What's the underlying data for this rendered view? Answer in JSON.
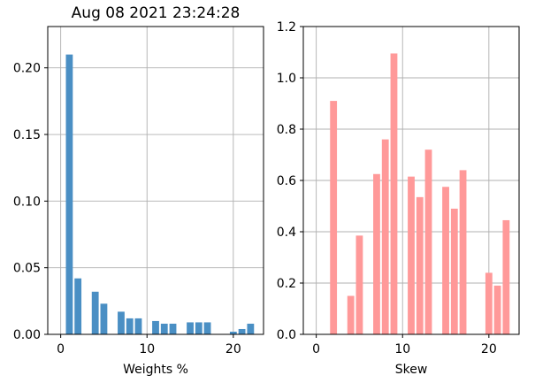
{
  "chart_data": [
    {
      "type": "bar",
      "title": "Aug 08 2021 23:24:28",
      "xlabel": "Weights %",
      "ylabel": "",
      "x": [
        1,
        2,
        4,
        5,
        7,
        8,
        9,
        11,
        12,
        13,
        15,
        16,
        17,
        20,
        21,
        22
      ],
      "values": [
        0.21,
        0.042,
        0.032,
        0.023,
        0.017,
        0.012,
        0.012,
        0.01,
        0.008,
        0.008,
        0.009,
        0.009,
        0.009,
        0.002,
        0.004,
        0.008
      ],
      "xlim": [
        -1.5,
        23.5
      ],
      "ylim": [
        0,
        0.231
      ],
      "xticks": [
        0,
        10,
        20
      ],
      "yticks": [
        0.0,
        0.05,
        0.1,
        0.15,
        0.2
      ],
      "ytick_labels": [
        "0.00",
        "0.05",
        "0.10",
        "0.15",
        "0.20"
      ],
      "grid": true,
      "color": "#4a8fc4"
    },
    {
      "type": "bar",
      "title": "",
      "xlabel": "Skew",
      "ylabel": "",
      "x": [
        2,
        4,
        5,
        7,
        8,
        9,
        11,
        12,
        13,
        15,
        16,
        17,
        20,
        21,
        22
      ],
      "values": [
        0.91,
        0.15,
        0.385,
        0.625,
        0.76,
        1.095,
        0.615,
        0.535,
        0.72,
        0.575,
        0.49,
        0.64,
        0.24,
        0.19,
        0.445
      ],
      "xlim": [
        -1.5,
        23.5
      ],
      "ylim": [
        0,
        1.2
      ],
      "xticks": [
        0,
        10,
        20
      ],
      "yticks": [
        0.0,
        0.2,
        0.4,
        0.6,
        0.8,
        1.0,
        1.2
      ],
      "ytick_labels": [
        "0.0",
        "0.2",
        "0.4",
        "0.6",
        "0.8",
        "1.0",
        "1.2"
      ],
      "grid": true,
      "color": "#ff9999"
    }
  ]
}
